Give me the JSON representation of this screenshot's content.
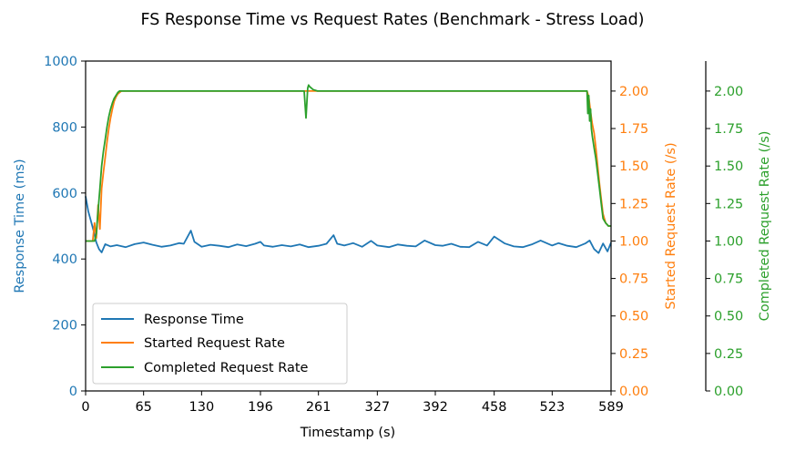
{
  "chart_data": {
    "type": "line",
    "title": "FS Response Time vs Request Rates (Benchmark - Stress Load)",
    "xlabel": "Timestamp (s)",
    "xlim": [
      0,
      589
    ],
    "x_ticks": [
      0,
      65,
      130,
      196,
      261,
      327,
      392,
      458,
      523,
      589
    ],
    "axes": [
      {
        "id": "left",
        "label": "Response Time (ms)",
        "color": "#1f77b4",
        "ylim": [
          0,
          1000
        ],
        "ticks": [
          0,
          200,
          400,
          600,
          800,
          1000
        ],
        "tick_labels": [
          "0",
          "200",
          "400",
          "600",
          "800",
          "1000"
        ]
      },
      {
        "id": "right1",
        "label": "Started Request Rate (/s)",
        "color": "#ff7f0e",
        "ylim": [
          0,
          2.2
        ],
        "ticks": [
          0,
          0.25,
          0.5,
          0.75,
          1.0,
          1.25,
          1.5,
          1.75,
          2.0
        ],
        "tick_labels": [
          "0.00",
          "0.25",
          "0.50",
          "0.75",
          "1.00",
          "1.25",
          "1.50",
          "1.75",
          "2.00"
        ]
      },
      {
        "id": "right2",
        "label": "Completed Request Rate (/s)",
        "color": "#2ca02c",
        "ylim": [
          0,
          2.2
        ],
        "ticks": [
          0,
          0.25,
          0.5,
          0.75,
          1.0,
          1.25,
          1.5,
          1.75,
          2.0
        ],
        "tick_labels": [
          "0.00",
          "0.25",
          "0.50",
          "0.75",
          "1.00",
          "1.25",
          "1.50",
          "1.75",
          "2.00"
        ]
      }
    ],
    "legend_position": "lower-left",
    "series": [
      {
        "name": "Response Time",
        "axis": "left",
        "color": "#1f77b4",
        "x": [
          0,
          3,
          6,
          9,
          12,
          15,
          18,
          22,
          28,
          35,
          45,
          55,
          65,
          75,
          85,
          95,
          105,
          110,
          114,
          118,
          122,
          130,
          140,
          150,
          160,
          170,
          180,
          190,
          196,
          200,
          210,
          220,
          230,
          240,
          250,
          261,
          270,
          278,
          282,
          290,
          300,
          310,
          320,
          327,
          340,
          350,
          360,
          370,
          380,
          392,
          400,
          410,
          420,
          430,
          440,
          450,
          458,
          470,
          480,
          490,
          500,
          510,
          523,
          530,
          540,
          550,
          560,
          565,
          570,
          575,
          580,
          585,
          589
        ],
        "values": [
          590,
          545,
          515,
          485,
          450,
          430,
          420,
          445,
          438,
          442,
          436,
          445,
          450,
          443,
          437,
          441,
          448,
          446,
          466,
          486,
          452,
          437,
          443,
          440,
          436,
          444,
          439,
          446,
          452,
          441,
          437,
          442,
          438,
          444,
          436,
          440,
          446,
          472,
          446,
          441,
          448,
          437,
          455,
          441,
          436,
          444,
          440,
          438,
          456,
          442,
          440,
          446,
          437,
          436,
          452,
          441,
          468,
          447,
          438,
          436,
          444,
          456,
          441,
          448,
          440,
          436,
          447,
          456,
          430,
          418,
          447,
          423,
          450
        ]
      },
      {
        "name": "Started Request Rate",
        "axis": "right1",
        "color": "#ff7f0e",
        "x": [
          0,
          8,
          10,
          12,
          14,
          16,
          18,
          20,
          22,
          24,
          26,
          28,
          30,
          32,
          34,
          36,
          38,
          40,
          45,
          50,
          55,
          65,
          130,
          196,
          261,
          327,
          392,
          458,
          523,
          560,
          562,
          564,
          566,
          568,
          570,
          572,
          574,
          576,
          578,
          580,
          583,
          586,
          589
        ],
        "values": [
          1.0,
          1.0,
          1.12,
          1.02,
          1.24,
          1.08,
          1.35,
          1.46,
          1.56,
          1.66,
          1.75,
          1.82,
          1.88,
          1.93,
          1.96,
          1.98,
          1.99,
          2.0,
          2.0,
          2.0,
          2.0,
          2.0,
          2.0,
          2.0,
          2.0,
          2.0,
          2.0,
          2.0,
          2.0,
          2.0,
          2.0,
          1.96,
          1.86,
          1.78,
          1.72,
          1.62,
          1.5,
          1.38,
          1.28,
          1.18,
          1.12,
          1.1,
          1.1
        ]
      },
      {
        "name": "Completed Request Rate",
        "axis": "right2",
        "color": "#2ca02c",
        "x": [
          0,
          10,
          12,
          14,
          16,
          18,
          20,
          22,
          24,
          26,
          28,
          30,
          32,
          34,
          36,
          38,
          40,
          45,
          50,
          65,
          130,
          196,
          245,
          247,
          249,
          250,
          251,
          253,
          255,
          260,
          270,
          327,
          392,
          458,
          523,
          560,
          562,
          563,
          564,
          565,
          566,
          567,
          568,
          570,
          572,
          574,
          576,
          578,
          580,
          583,
          586,
          589
        ],
        "values": [
          1.0,
          1.0,
          1.05,
          1.2,
          1.35,
          1.5,
          1.6,
          1.68,
          1.76,
          1.83,
          1.88,
          1.92,
          1.95,
          1.97,
          1.99,
          2.0,
          2.0,
          2.0,
          2.0,
          2.0,
          2.0,
          2.0,
          2.0,
          1.82,
          2.02,
          2.04,
          2.03,
          2.02,
          2.01,
          2.0,
          2.0,
          2.0,
          2.0,
          2.0,
          2.0,
          2.0,
          2.0,
          1.85,
          1.97,
          1.8,
          1.88,
          1.75,
          1.7,
          1.62,
          1.55,
          1.45,
          1.35,
          1.25,
          1.15,
          1.12,
          1.1,
          1.1
        ]
      }
    ]
  }
}
